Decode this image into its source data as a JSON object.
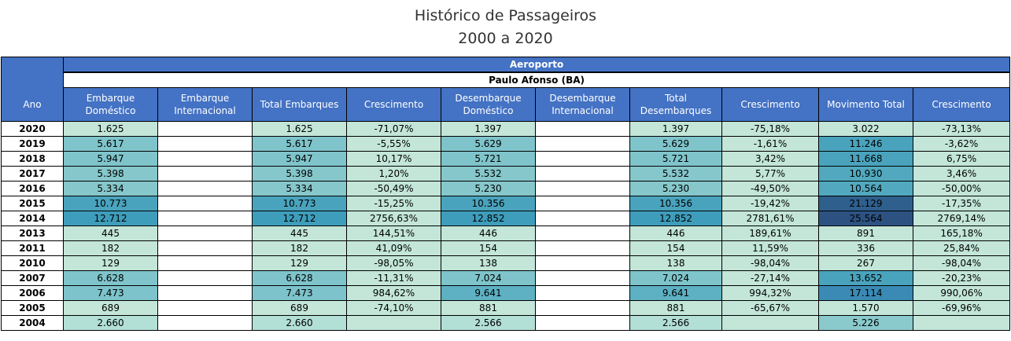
{
  "title": "Histórico de Passageiros",
  "subtitle": "2000 a 2020",
  "group_header": "Aeroporto",
  "airport": "Paulo Afonso (BA)",
  "columns": [
    "Ano",
    "Embarque Doméstico",
    "Embarque Internacional",
    "Total Embarques",
    "Crescimento",
    "Desembarque Doméstico",
    "Desembarque Internacional",
    "Total Desembarques",
    "Crescimento",
    "Movimento Total",
    "Crescimento"
  ],
  "rows": [
    [
      "2020",
      "1.625",
      "",
      "1.625",
      "-71,07%",
      "1.397",
      "",
      "1.397",
      "-75,18%",
      "3.022",
      "-73,13%"
    ],
    [
      "2019",
      "5.617",
      "",
      "5.617",
      "-5,55%",
      "5.629",
      "",
      "5.629",
      "-1,61%",
      "11.246",
      "-3,62%"
    ],
    [
      "2018",
      "5.947",
      "",
      "5.947",
      "10,17%",
      "5.721",
      "",
      "5.721",
      "3,42%",
      "11.668",
      "6,75%"
    ],
    [
      "2017",
      "5.398",
      "",
      "5.398",
      "1,20%",
      "5.532",
      "",
      "5.532",
      "5,77%",
      "10.930",
      "3,46%"
    ],
    [
      "2016",
      "5.334",
      "",
      "5.334",
      "-50,49%",
      "5.230",
      "",
      "5.230",
      "-49,50%",
      "10.564",
      "-50,00%"
    ],
    [
      "2015",
      "10.773",
      "",
      "10.773",
      "-15,25%",
      "10.356",
      "",
      "10.356",
      "-19,42%",
      "21.129",
      "-17,35%"
    ],
    [
      "2014",
      "12.712",
      "",
      "12.712",
      "2756,63%",
      "12.852",
      "",
      "12.852",
      "2781,61%",
      "25.564",
      "2769,14%"
    ],
    [
      "2013",
      "445",
      "",
      "445",
      "144,51%",
      "446",
      "",
      "446",
      "189,61%",
      "891",
      "165,18%"
    ],
    [
      "2011",
      "182",
      "",
      "182",
      "41,09%",
      "154",
      "",
      "154",
      "11,59%",
      "336",
      "25,84%"
    ],
    [
      "2010",
      "129",
      "",
      "129",
      "-98,05%",
      "138",
      "",
      "138",
      "-98,04%",
      "267",
      "-98,04%"
    ],
    [
      "2007",
      "6.628",
      "",
      "6.628",
      "-11,31%",
      "7.024",
      "",
      "7.024",
      "-27,14%",
      "13.652",
      "-20,23%"
    ],
    [
      "2006",
      "7.473",
      "",
      "7.473",
      "984,62%",
      "9.641",
      "",
      "9.641",
      "994,32%",
      "17.114",
      "990,06%"
    ],
    [
      "2005",
      "689",
      "",
      "689",
      "-74,10%",
      "881",
      "",
      "881",
      "-65,67%",
      "1.570",
      "-69,96%"
    ],
    [
      "2004",
      "2.660",
      "",
      "2.660",
      "",
      "2.566",
      "",
      "2.566",
      "",
      "5.226",
      ""
    ]
  ],
  "cell_colors": [
    [
      "#fff",
      "#c3e6d9",
      "#fff",
      "#c3e6d9",
      "#c3e6d9",
      "#c3e6d9",
      "#fff",
      "#c3e6d9",
      "#c3e6d9",
      "#c3e6d9",
      "#c3e6d9"
    ],
    [
      "#fff",
      "#7fc4cb",
      "#fff",
      "#7fc4cb",
      "#c3e6d9",
      "#7fc4cb",
      "#fff",
      "#7fc4cb",
      "#c3e6d9",
      "#4aa3bd",
      "#c3e6d9"
    ],
    [
      "#fff",
      "#7fc4cb",
      "#fff",
      "#7fc4cb",
      "#c3e6d9",
      "#7fc4cb",
      "#fff",
      "#7fc4cb",
      "#c3e6d9",
      "#4aa3bd",
      "#c3e6d9"
    ],
    [
      "#fff",
      "#86c7cb",
      "#fff",
      "#86c7cb",
      "#c3e6d9",
      "#86c7cb",
      "#fff",
      "#86c7cb",
      "#c3e6d9",
      "#52a9bf",
      "#c3e6d9"
    ],
    [
      "#fff",
      "#86c7cb",
      "#fff",
      "#86c7cb",
      "#c3e6d9",
      "#86c7cb",
      "#fff",
      "#86c7cb",
      "#c3e6d9",
      "#52a9bf",
      "#c3e6d9"
    ],
    [
      "#fff",
      "#4aa3bd",
      "#fff",
      "#4aa3bd",
      "#c3e6d9",
      "#4aa3bd",
      "#fff",
      "#4aa3bd",
      "#c3e6d9",
      "#2f5f8c",
      "#c3e6d9"
    ],
    [
      "#fff",
      "#3e9dbb",
      "#fff",
      "#3e9dbb",
      "#c3e6d9",
      "#3e9dbb",
      "#fff",
      "#3e9dbb",
      "#c3e6d9",
      "#2d5282",
      "#c3e6d9"
    ],
    [
      "#fff",
      "#c3e6d9",
      "#fff",
      "#c3e6d9",
      "#c3e6d9",
      "#c3e6d9",
      "#fff",
      "#c3e6d9",
      "#c3e6d9",
      "#c3e6d9",
      "#c3e6d9"
    ],
    [
      "#fff",
      "#c3e6d9",
      "#fff",
      "#c3e6d9",
      "#c3e6d9",
      "#c3e6d9",
      "#fff",
      "#c3e6d9",
      "#c3e6d9",
      "#c3e6d9",
      "#c3e6d9"
    ],
    [
      "#fff",
      "#c3e6d9",
      "#fff",
      "#c3e6d9",
      "#c3e6d9",
      "#c3e6d9",
      "#fff",
      "#c3e6d9",
      "#c3e6d9",
      "#c3e6d9",
      "#c3e6d9"
    ],
    [
      "#fff",
      "#7fc4cb",
      "#fff",
      "#7fc4cb",
      "#c3e6d9",
      "#7fc4cb",
      "#fff",
      "#7fc4cb",
      "#c3e6d9",
      "#4aa3bd",
      "#c3e6d9"
    ],
    [
      "#fff",
      "#7dc3cb",
      "#fff",
      "#7dc3cb",
      "#c3e6d9",
      "#5eb0c3",
      "#fff",
      "#5eb0c3",
      "#c3e6d9",
      "#3a8ab5",
      "#c3e6d9"
    ],
    [
      "#fff",
      "#c3e6d9",
      "#fff",
      "#c3e6d9",
      "#c3e6d9",
      "#c3e6d9",
      "#fff",
      "#c3e6d9",
      "#c3e6d9",
      "#c3e6d9",
      "#c3e6d9"
    ],
    [
      "#fff",
      "#b2dfd6",
      "#fff",
      "#b2dfd6",
      "#c3e6d9",
      "#b2dfd6",
      "#fff",
      "#b2dfd6",
      "#c3e6d9",
      "#8acacd",
      "#c3e6d9"
    ]
  ]
}
